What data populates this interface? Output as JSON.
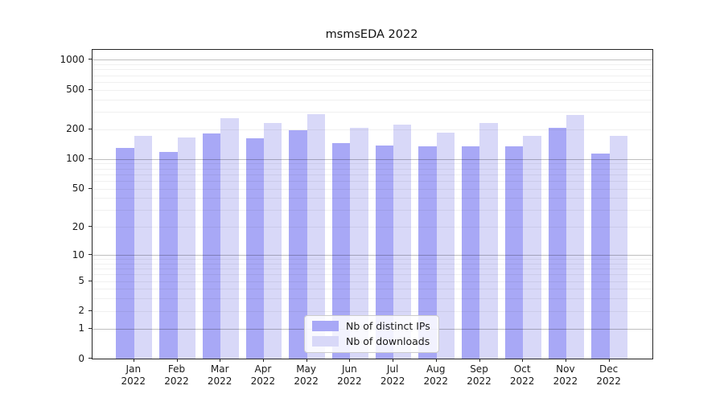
{
  "chart_data": {
    "type": "bar",
    "title": "msmsEDA 2022",
    "categories": [
      "Jan 2022",
      "Feb 2022",
      "Mar 2022",
      "Apr 2022",
      "May 2022",
      "Jun 2022",
      "Jul 2022",
      "Aug 2022",
      "Sep 2022",
      "Oct 2022",
      "Nov 2022",
      "Dec 2022"
    ],
    "series": [
      {
        "name": "Nb of distinct IPs",
        "color": "#a8a8f6",
        "values": [
          129,
          119,
          182,
          163,
          194,
          145,
          137,
          134,
          134,
          134,
          205,
          113
        ]
      },
      {
        "name": "Nb of downloads",
        "color": "#d8d8f8",
        "values": [
          170,
          165,
          257,
          233,
          283,
          206,
          223,
          185,
          231,
          170,
          278,
          170
        ]
      }
    ],
    "xlabel": "",
    "ylabel": "",
    "yscale": "log1p",
    "yticks": [
      0,
      1,
      2,
      5,
      10,
      20,
      50,
      100,
      200,
      500,
      1000
    ],
    "ylim": [
      0,
      1258
    ],
    "grid": true,
    "legend_position": "lower center"
  },
  "colors": {
    "ips_bar": "#a8a8f6",
    "downloads_bar": "#d8d8f8",
    "spine": "#262626",
    "grid_major": "#bfbfbf",
    "grid_minor": "#efefef"
  }
}
